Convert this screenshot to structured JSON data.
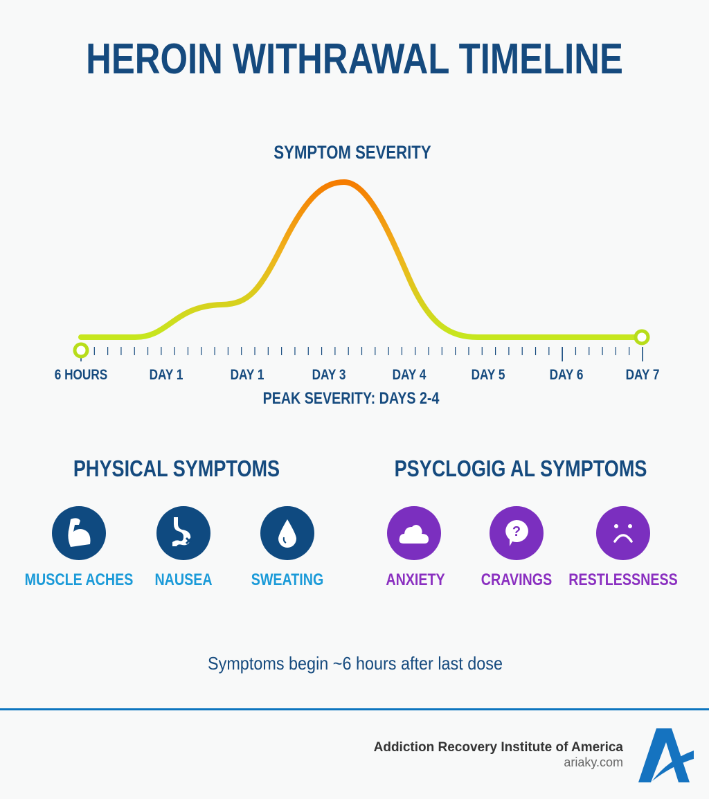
{
  "title": "HEROIN WITHRAWAL TIMELINE",
  "severity_label": "SYMPTOM SEVERITY",
  "timeline_labels": [
    "6 HOURS",
    "DAY 1",
    "DAY 1",
    "DAY 3",
    "DAY 4",
    "DAY 5",
    "DAY 6",
    "DAY 7"
  ],
  "peak_label": "PEAK SEVERITY: DAYS 2-4",
  "colors": {
    "primary": "#154a7e",
    "curve_low": "#c5e81e",
    "curve_peak": "#f57c00",
    "physical": "#0f4a80",
    "physical_text": "#1a9ad8",
    "psych": "#7b2fbf",
    "psych_text": "#8a2fc0"
  },
  "physical": {
    "heading": "PHYSICAL SYMPTOMS",
    "items": [
      {
        "label": "MUSCLE ACHES",
        "icon": "muscle-icon"
      },
      {
        "label": "NAUSEA",
        "icon": "stomach-icon"
      },
      {
        "label": "SWEATING",
        "icon": "drop-icon"
      }
    ]
  },
  "psychological": {
    "heading": "PSYCLOGIG AL SYMPTOMS",
    "items": [
      {
        "label": "ANXIETY",
        "icon": "cloud-icon"
      },
      {
        "label": "CRAVINGS",
        "icon": "question-bubble-icon"
      },
      {
        "label": "RESTLESSNESS",
        "icon": "sad-face-icon"
      }
    ]
  },
  "note": "Symptoms begin ~6 hours after last dose",
  "footer": {
    "org": "Addiction Recovery Institute of America",
    "site": "ariaky.com",
    "logo_letter": "A"
  }
}
